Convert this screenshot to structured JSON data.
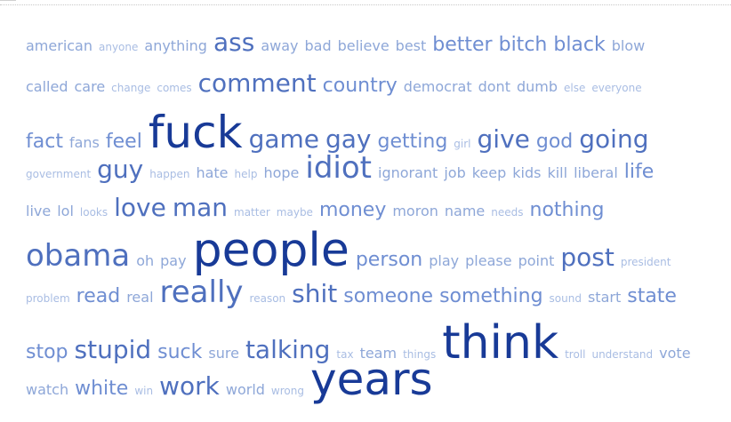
{
  "palette": {
    "w1": "#a9bde3",
    "w2": "#8ea7d8",
    "w3": "#6f8ed2",
    "w4": "#4f70be",
    "w5": "#183a97"
  },
  "cloud": {
    "lines": [
      [
        [
          "american",
          2
        ],
        [
          "anyone",
          1
        ],
        [
          "anything",
          2
        ],
        [
          "ass",
          4
        ],
        [
          "away",
          2
        ],
        [
          "bad",
          2
        ],
        [
          "believe",
          2
        ],
        [
          "best",
          2
        ],
        [
          "better",
          3
        ],
        [
          "bitch",
          3
        ],
        [
          "black",
          3
        ],
        [
          "blow",
          2
        ]
      ],
      [
        [
          "called",
          2
        ],
        [
          "care",
          2
        ],
        [
          "change",
          1
        ],
        [
          "comes",
          1
        ],
        [
          "comment",
          4
        ],
        [
          "country",
          3
        ],
        [
          "democrat",
          2
        ],
        [
          "dont",
          2
        ],
        [
          "dumb",
          2
        ],
        [
          "else",
          1
        ],
        [
          "everyone",
          1
        ]
      ],
      [
        [
          "fact",
          3
        ],
        [
          "fans",
          2
        ],
        [
          "feel",
          3
        ],
        [
          "fuck",
          6
        ],
        [
          "game",
          4
        ],
        [
          "gay",
          4
        ],
        [
          "getting",
          3
        ],
        [
          "girl",
          1
        ],
        [
          "give",
          4
        ],
        [
          "god",
          3
        ],
        [
          "going",
          4
        ]
      ],
      [
        [
          "government",
          1
        ],
        [
          "guy",
          4
        ],
        [
          "happen",
          1
        ],
        [
          "hate",
          2
        ],
        [
          "help",
          1
        ],
        [
          "hope",
          2
        ],
        [
          "idiot",
          5
        ],
        [
          "ignorant",
          2
        ],
        [
          "job",
          2
        ],
        [
          "keep",
          2
        ],
        [
          "kids",
          2
        ],
        [
          "kill",
          2
        ],
        [
          "liberal",
          2
        ],
        [
          "life",
          3
        ]
      ],
      [
        [
          "live",
          2
        ],
        [
          "lol",
          2
        ],
        [
          "looks",
          1
        ],
        [
          "love",
          4
        ],
        [
          "man",
          4
        ],
        [
          "matter",
          1
        ],
        [
          "maybe",
          1
        ],
        [
          "money",
          3
        ],
        [
          "moron",
          2
        ],
        [
          "name",
          2
        ],
        [
          "needs",
          1
        ],
        [
          "nothing",
          3
        ]
      ],
      [
        [
          "obama",
          5
        ],
        [
          "oh",
          2
        ],
        [
          "pay",
          2
        ],
        [
          "people",
          7
        ],
        [
          "person",
          3
        ],
        [
          "play",
          2
        ],
        [
          "please",
          2
        ],
        [
          "point",
          2
        ],
        [
          "post",
          4
        ],
        [
          "president",
          1
        ]
      ],
      [
        [
          "problem",
          1
        ],
        [
          "read",
          3
        ],
        [
          "real",
          2
        ],
        [
          "really",
          5
        ],
        [
          "reason",
          1
        ],
        [
          "shit",
          4
        ],
        [
          "someone",
          3
        ],
        [
          "something",
          3
        ],
        [
          "sound",
          1
        ],
        [
          "start",
          2
        ],
        [
          "state",
          3
        ]
      ],
      [
        [
          "stop",
          3
        ],
        [
          "stupid",
          4
        ],
        [
          "suck",
          3
        ],
        [
          "sure",
          2
        ],
        [
          "talking",
          4
        ],
        [
          "tax",
          1
        ],
        [
          "team",
          2
        ],
        [
          "things",
          1
        ],
        [
          "think",
          7
        ],
        [
          "troll",
          1
        ],
        [
          "understand",
          1
        ],
        [
          "vote",
          2
        ]
      ],
      [
        [
          "watch",
          2
        ],
        [
          "white",
          3
        ],
        [
          "win",
          1
        ],
        [
          "work",
          4
        ],
        [
          "world",
          2
        ],
        [
          "wrong",
          1
        ],
        [
          "years",
          6
        ]
      ]
    ]
  }
}
